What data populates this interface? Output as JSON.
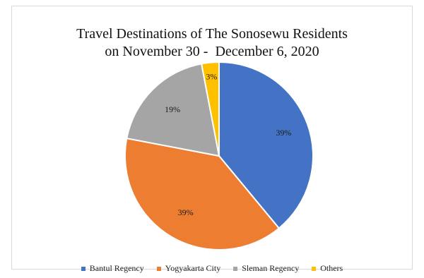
{
  "chart_data": {
    "type": "pie",
    "title": "Travel Destinations of The Sonosewu Residents",
    "subtitle": "on November 30 -  December 6, 2020",
    "categories": [
      "Bantul Regency",
      "Yogyakarta City",
      "Sleman Regency",
      "Others"
    ],
    "values": [
      39,
      39,
      19,
      3
    ],
    "data_labels": [
      "39%",
      "39%",
      "19%",
      "3%"
    ],
    "colors": [
      "#4472c4",
      "#ed7d31",
      "#a5a5a5",
      "#ffc000"
    ],
    "start_angle_deg": 0,
    "direction": "clockwise",
    "legend": "bottom",
    "grid": false
  }
}
